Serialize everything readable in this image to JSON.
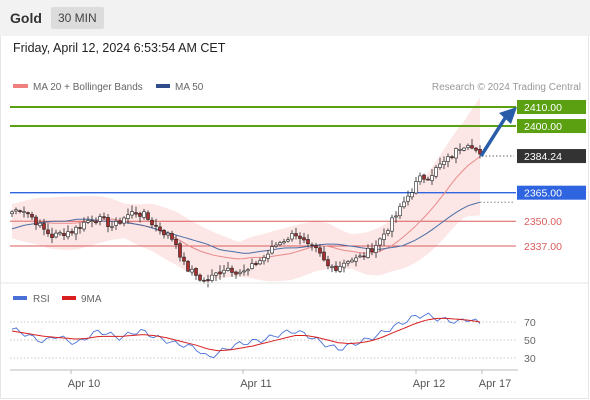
{
  "header": {
    "title": "Gold",
    "timeframe": "30 MIN"
  },
  "datetime": "Friday, April 12, 2024 6:53:54 AM CET",
  "legend": {
    "ma20": "MA 20 + Bollinger Bands",
    "ma50": "MA 50",
    "credit": "Research © 2024 Trading Central"
  },
  "colors": {
    "candle_up": "#ffffff",
    "candle_down": "#ab2d2d",
    "ma20": "#e88a8a",
    "ma50": "#4a6fa5",
    "bollinger_fill": "#fde2e2",
    "resistance": "#5aa010",
    "support_blue": "#2f64e0",
    "support_red": "#d95d5d",
    "arrow": "#2a5da8",
    "rsi": "#4a72d6",
    "rsi_ma": "#d82020"
  },
  "chart_data": [
    {
      "type": "candlestick",
      "title": "Gold",
      "timeframe": "30 MIN",
      "x_labels": [
        "Apr 10",
        "Apr 11",
        "Apr 12",
        "Apr 17"
      ],
      "ylim": [
        2295,
        2425
      ],
      "levels": [
        {
          "value": 2410.0,
          "label": "2410.00",
          "kind": "resistance",
          "color": "#5aa010"
        },
        {
          "value": 2400.0,
          "label": "2400.00",
          "kind": "resistance",
          "color": "#5aa010"
        },
        {
          "value": 2384.24,
          "label": "2384.24",
          "kind": "last_price",
          "color": "#333333"
        },
        {
          "value": 2365.0,
          "label": "2365.00",
          "kind": "pivot",
          "color": "#2f64e0"
        },
        {
          "value": 2350.0,
          "label": "2350.00",
          "kind": "support",
          "color": "#d95d5d"
        },
        {
          "value": 2337.0,
          "label": "2337.00",
          "kind": "support",
          "color": "#d95d5d"
        }
      ],
      "close_path": [
        2355,
        2357,
        2352,
        2346,
        2342,
        2344,
        2345,
        2349,
        2352,
        2350,
        2347,
        2352,
        2355,
        2353,
        2348,
        2344,
        2340,
        2326,
        2322,
        2318,
        2322,
        2326,
        2324,
        2323,
        2328,
        2332,
        2338,
        2341,
        2344,
        2337,
        2334,
        2326,
        2326,
        2330,
        2330,
        2334,
        2339,
        2347,
        2355,
        2364,
        2372,
        2374,
        2379,
        2383,
        2389,
        2392,
        2384
      ],
      "ma20_path": [
        2350,
        2350,
        2350,
        2349,
        2349,
        2349,
        2350,
        2351,
        2351,
        2350,
        2348,
        2347,
        2344,
        2341,
        2337,
        2334,
        2332,
        2331,
        2330,
        2331,
        2331,
        2332,
        2333,
        2335,
        2337,
        2337,
        2335,
        2334,
        2333,
        2334,
        2337,
        2342,
        2348,
        2355,
        2363,
        2372,
        2379,
        2384
      ],
      "ma50_path": [
        2346,
        2348,
        2349,
        2350,
        2350,
        2351,
        2351,
        2350,
        2350,
        2349,
        2348,
        2346,
        2344,
        2342,
        2340,
        2338,
        2335,
        2334,
        2333,
        2334,
        2335,
        2336,
        2336,
        2337,
        2338,
        2338,
        2337,
        2336,
        2335,
        2336,
        2337,
        2340,
        2344,
        2349,
        2354,
        2358,
        2360
      ],
      "projection_target": 2410
    },
    {
      "type": "line",
      "title": "RSI",
      "series": [
        {
          "name": "RSI",
          "values": [
            62,
            58,
            52,
            48,
            55,
            50,
            46,
            54,
            60,
            56,
            52,
            58,
            60,
            54,
            50,
            46,
            44,
            40,
            30,
            36,
            42,
            46,
            48,
            50,
            54,
            58,
            60,
            56,
            50,
            44,
            40,
            44,
            48,
            52,
            58,
            64,
            70,
            76,
            78,
            74,
            72,
            70,
            74,
            68
          ]
        },
        {
          "name": "9MA",
          "values": [
            60,
            58,
            56,
            54,
            53,
            52,
            51,
            52,
            54,
            54,
            54,
            55,
            56,
            55,
            53,
            50,
            47,
            44,
            40,
            38,
            39,
            41,
            43,
            46,
            49,
            52,
            55,
            55,
            53,
            50,
            47,
            46,
            47,
            49,
            53,
            58,
            63,
            68,
            72,
            74,
            74,
            73,
            72,
            70
          ]
        }
      ],
      "ylim": [
        20,
        85
      ],
      "levels": [
        70,
        50,
        30
      ],
      "tick_labels": [
        "70",
        "50",
        "30"
      ]
    }
  ]
}
